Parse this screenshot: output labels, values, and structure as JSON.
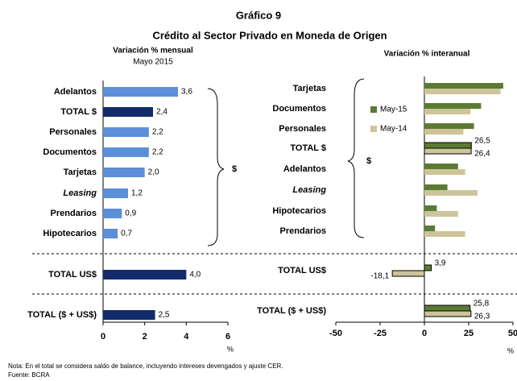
{
  "title": "Gráfico 9",
  "subtitle": "Crédito al Sector Privado en Moneda de Origen",
  "notes": [
    "Nota: En el total se considera saldo de balance, incluyendo intereses devengados y ajuste CER.",
    "Fuente: BCRA"
  ],
  "chart_data": [
    {
      "type": "hbar",
      "title": "Variación % mensual",
      "subtitle": "Mayo 2015",
      "bracket_label": "$",
      "x_label": "%",
      "categories": [
        "Adelantos",
        "TOTAL $",
        "Personales",
        "Documentos",
        "Tarjetas",
        "Leasing",
        "Prendarios",
        "Hipotecarios",
        "TOTAL US$",
        "TOTAL ($ + US$)"
      ],
      "values": [
        3.6,
        2.4,
        2.2,
        2.2,
        2.0,
        1.2,
        0.9,
        0.7,
        4.0,
        2.5
      ],
      "value_labels": [
        "3,6",
        "2,4",
        "2,2",
        "2,2",
        "2,0",
        "1,2",
        "0,9",
        "0,7",
        "4,0",
        "2,5"
      ],
      "colors": [
        "#5b8fd8",
        "#112b6b",
        "#5b8fd8",
        "#5b8fd8",
        "#5b8fd8",
        "#5b8fd8",
        "#5b8fd8",
        "#5b8fd8",
        "#112b6b",
        "#112b6b"
      ],
      "xlim": [
        0,
        6
      ],
      "xticks": [
        0,
        2,
        4,
        6
      ]
    },
    {
      "type": "grouped-hbar",
      "title": "Variación % interanual",
      "bracket_label": "$",
      "x_label": "%",
      "categories": [
        "Tarjetas",
        "Documentos",
        "Personales",
        "TOTAL $",
        "Adelantos",
        "Leasing",
        "Hipotecarios",
        "Prendarios",
        "TOTAL US$",
        "TOTAL ($ + US$)"
      ],
      "series": [
        {
          "name": "May-15",
          "color": "#5b7a33",
          "values": [
            44.5,
            32,
            28,
            26.5,
            19,
            13,
            7,
            6,
            3.9,
            25.8
          ],
          "value_labels": [
            null,
            null,
            null,
            "26,5",
            null,
            null,
            null,
            null,
            "3,9",
            "25,8"
          ]
        },
        {
          "name": "May-14",
          "color": "#cdc49a",
          "values": [
            43,
            26,
            22,
            26.4,
            23,
            30,
            19,
            23,
            -18.1,
            26.3
          ],
          "value_labels": [
            null,
            null,
            null,
            "26,4",
            null,
            null,
            null,
            null,
            "-18,1",
            "26,3"
          ]
        }
      ],
      "xlim": [
        -50,
        50
      ],
      "xticks": [
        -50,
        -25,
        0,
        25,
        50
      ]
    }
  ]
}
